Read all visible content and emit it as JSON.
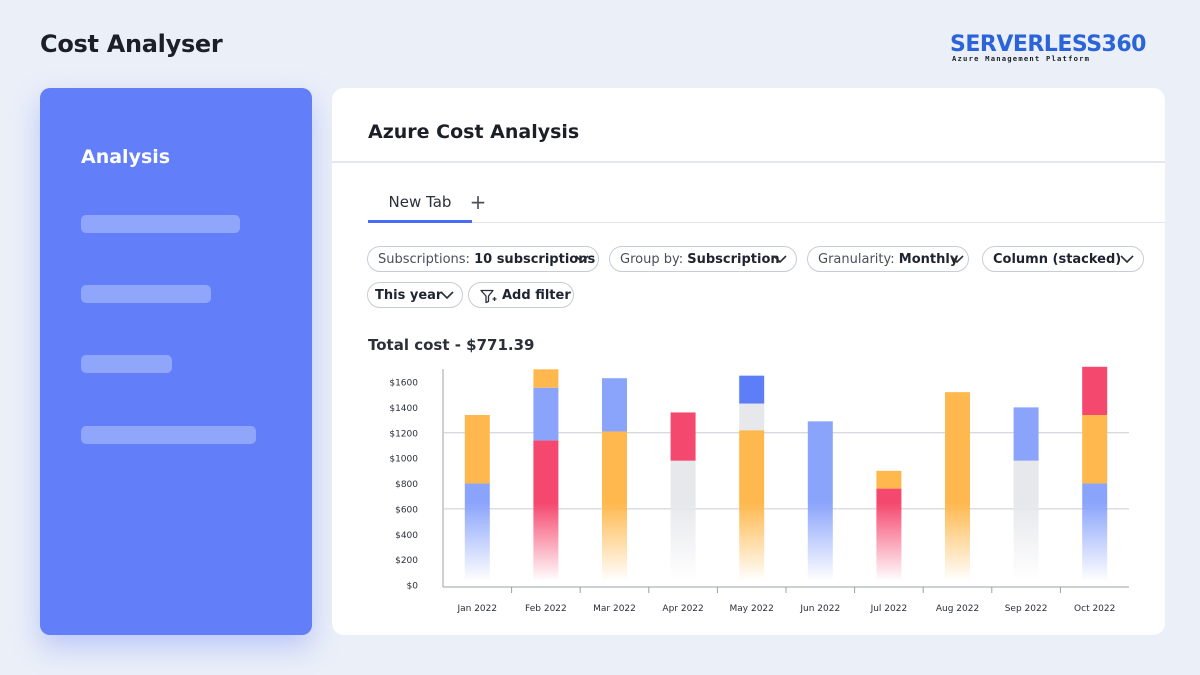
{
  "header": {
    "title": "Cost Analyser"
  },
  "brand": {
    "name": "SERVERLESS360",
    "tagline": "Azure Management Platform"
  },
  "sidebar": {
    "title": "Analysis",
    "placeholder_items": 4
  },
  "main": {
    "title": "Azure Cost Analysis",
    "tabs": [
      {
        "label": "New Tab",
        "active": true
      }
    ],
    "add_tab_label": "+",
    "filters": {
      "subscriptions": {
        "label": "Subscriptions:",
        "value": "10 subscriptions"
      },
      "group_by": {
        "label": "Group by:",
        "value": "Subscription"
      },
      "granularity": {
        "label": "Granularity:",
        "value": "Monthly"
      },
      "chart_type": {
        "value": "Column (stacked)"
      },
      "period": {
        "value": "This year"
      },
      "add_filter": {
        "label": "Add filter"
      }
    },
    "total_cost": "Total cost - $771.39"
  },
  "colors": {
    "accent": "#4a6cf2",
    "sidebar": "#627ef8",
    "series_blue": "#8ba4fb",
    "series_orange": "#ffb84d",
    "series_red": "#f5486e",
    "series_gray": "#e7e8ec",
    "series_deep_blue": "#5d7ef6"
  },
  "chart_data": {
    "type": "bar",
    "stacked": true,
    "categories": [
      "Jan 2022",
      "Feb 2022",
      "Mar 2022",
      "Apr 2022",
      "May 2022",
      "Jun 2022",
      "Jul 2022",
      "Aug 2022",
      "Sep 2022",
      "Oct 2022"
    ],
    "y_ticks": [
      "$0",
      "$200",
      "$400",
      "$600",
      "$800",
      "$1000",
      "$1200",
      "$1400",
      "$1600"
    ],
    "ylim": [
      0,
      1700
    ],
    "grid": "y at 600 and 1200",
    "segments": [
      [
        {
          "color": "blue",
          "value": 800
        },
        {
          "color": "orange",
          "value": 540
        }
      ],
      [
        {
          "color": "red",
          "value": 1140
        },
        {
          "color": "blue",
          "value": 415
        },
        {
          "color": "orange",
          "value": 145
        }
      ],
      [
        {
          "color": "orange",
          "value": 1210
        },
        {
          "color": "blue",
          "value": 420
        }
      ],
      [
        {
          "color": "gray",
          "value": 980
        },
        {
          "color": "red",
          "value": 380
        }
      ],
      [
        {
          "color": "orange",
          "value": 1220
        },
        {
          "color": "gray",
          "value": 210
        },
        {
          "color": "deep_blue",
          "value": 220
        }
      ],
      [
        {
          "color": "blue",
          "value": 1290
        }
      ],
      [
        {
          "color": "red",
          "value": 760
        },
        {
          "color": "orange",
          "value": 140
        }
      ],
      [
        {
          "color": "orange",
          "value": 1520
        }
      ],
      [
        {
          "color": "gray",
          "value": 980
        },
        {
          "color": "blue",
          "value": 420
        }
      ],
      [
        {
          "color": "blue",
          "value": 800
        },
        {
          "color": "orange",
          "value": 540
        },
        {
          "color": "red",
          "value": 380
        }
      ]
    ]
  }
}
